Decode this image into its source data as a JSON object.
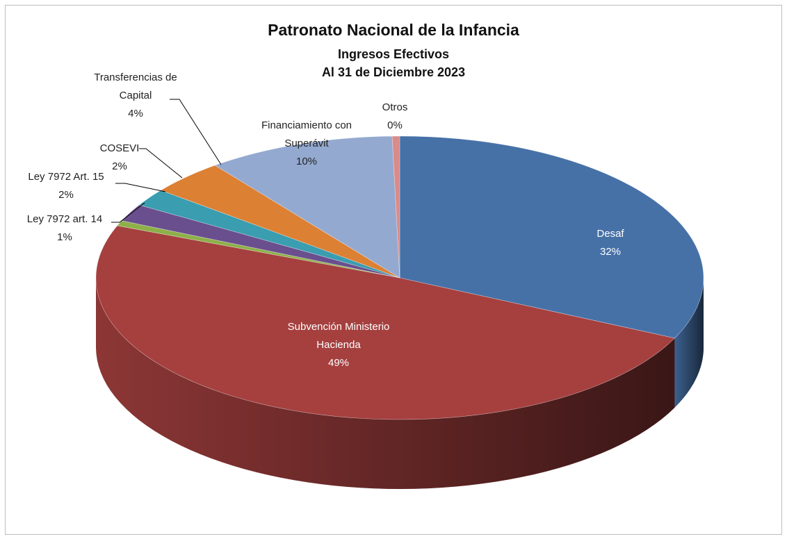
{
  "chart_data": {
    "type": "pie3d",
    "title": "Patronato Nacional de la Infancia",
    "subtitle": [
      "Ingresos Efectivos",
      "Al 31 de Diciembre 2023"
    ],
    "categories": [
      "Desaf",
      "Subvención Ministerio Hacienda",
      "Ley 7972 art. 14",
      "Ley 7972 Art. 15",
      "COSEVI",
      "Transferencias de Capital",
      "Financiamiento con Superávit",
      "Otros"
    ],
    "values": [
      32,
      49,
      0.6,
      2,
      2,
      4,
      10,
      0.4
    ],
    "value_labels": [
      "32%",
      "49%",
      "1%",
      "2%",
      "2%",
      "4%",
      "10%",
      "0%"
    ],
    "colors": [
      "#4671a7",
      "#a5403f",
      "#8db049",
      "#6a4f8e",
      "#3a9db0",
      "#dc8034",
      "#93a9d0",
      "#d98b89"
    ]
  }
}
